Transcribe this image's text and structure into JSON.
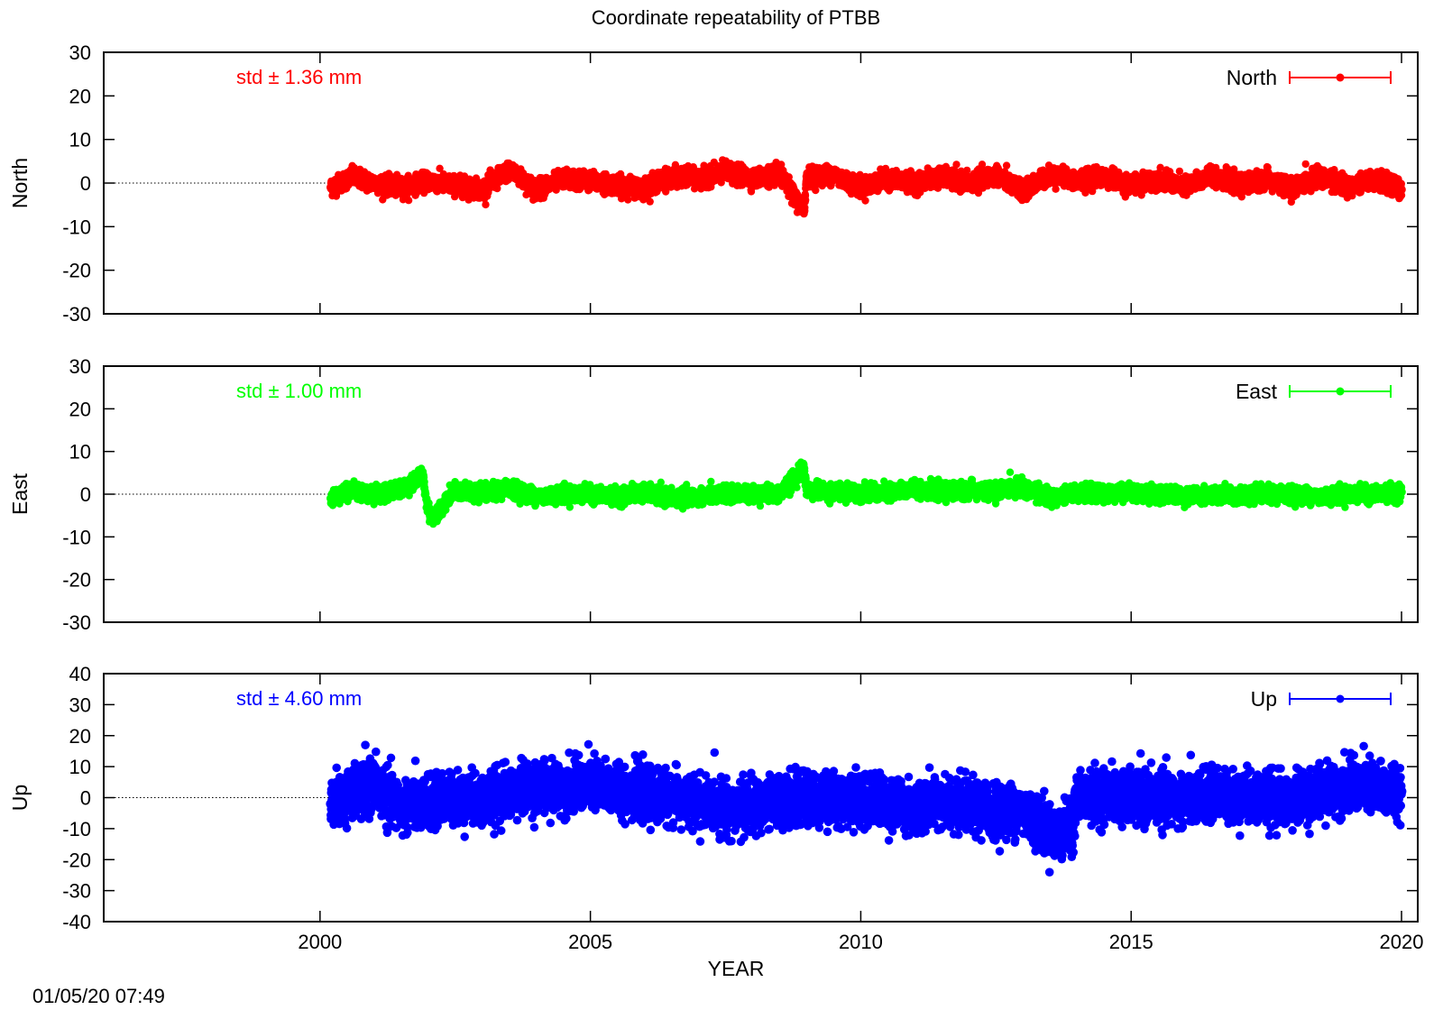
{
  "title": "Coordinate repeatability of PTBB",
  "xlabel": "YEAR",
  "timestamp": "01/05/20 07:49",
  "chart_data": [
    {
      "type": "scatter",
      "ylabel": "North",
      "legend": "North",
      "legend_position": "top-right",
      "std_text": "std ± 1.36 mm",
      "color": "#ff0000",
      "xlim": [
        1996,
        2020.3
      ],
      "ylim": [
        -30,
        30
      ],
      "yticks": [
        "30",
        "20",
        "10",
        "0",
        "-10",
        "-20",
        "-30"
      ],
      "zero_line": true,
      "data_range_x": [
        2000.2,
        2020.0
      ],
      "sampling": "daily",
      "x": [
        2000.2,
        2000.6,
        2001.0,
        2001.5,
        2002.0,
        2002.5,
        2003.0,
        2003.5,
        2004.0,
        2004.5,
        2005.0,
        2005.5,
        2006.0,
        2006.5,
        2007.0,
        2007.5,
        2008.0,
        2008.5,
        2008.95,
        2009.0,
        2009.5,
        2010.0,
        2010.5,
        2011.0,
        2011.5,
        2012.0,
        2012.5,
        2013.0,
        2013.5,
        2014.0,
        2014.5,
        2015.0,
        2015.5,
        2016.0,
        2016.5,
        2017.0,
        2017.5,
        2018.0,
        2018.5,
        2019.0,
        2019.5,
        2020.0
      ],
      "y": [
        -1.0,
        1.5,
        0.0,
        -1.0,
        0.5,
        -0.5,
        -1.5,
        3.0,
        -1.5,
        1.0,
        0.5,
        -0.5,
        -1.0,
        1.5,
        1.0,
        2.5,
        1.0,
        2.0,
        -6.5,
        1.5,
        2.0,
        -1.0,
        1.0,
        0.0,
        1.5,
        0.0,
        2.0,
        -2.0,
        2.0,
        0.5,
        1.5,
        -0.5,
        1.0,
        -1.0,
        2.0,
        -0.5,
        1.0,
        -1.5,
        2.0,
        -1.0,
        1.0,
        -1.5
      ]
    },
    {
      "type": "scatter",
      "ylabel": "East",
      "legend": "East",
      "legend_position": "top-right",
      "std_text": "std ± 1.00 mm",
      "color": "#00ff00",
      "xlim": [
        1996,
        2020.3
      ],
      "ylim": [
        -30,
        30
      ],
      "yticks": [
        "30",
        "20",
        "10",
        "0",
        "-10",
        "-20",
        "-30"
      ],
      "zero_line": true,
      "data_range_x": [
        2000.2,
        2020.0
      ],
      "sampling": "daily",
      "x": [
        2000.2,
        2000.6,
        2001.0,
        2001.5,
        2001.9,
        2002.0,
        2002.1,
        2002.5,
        2003.0,
        2003.5,
        2004.0,
        2004.5,
        2005.0,
        2005.5,
        2006.0,
        2006.5,
        2007.0,
        2007.5,
        2008.0,
        2008.5,
        2008.95,
        2009.0,
        2009.5,
        2010.0,
        2010.5,
        2011.0,
        2011.5,
        2012.0,
        2012.5,
        2013.0,
        2013.5,
        2014.0,
        2014.5,
        2015.0,
        2015.5,
        2016.0,
        2016.5,
        2017.0,
        2017.5,
        2018.0,
        2018.5,
        2019.0,
        2019.5,
        2020.0
      ],
      "y": [
        -1.0,
        1.0,
        0.0,
        1.0,
        4.5,
        -4.0,
        -5.5,
        1.0,
        0.0,
        1.5,
        -0.5,
        0.0,
        0.0,
        -0.5,
        0.5,
        -1.0,
        -0.5,
        0.0,
        0.0,
        0.0,
        6.0,
        1.0,
        0.5,
        0.5,
        0.0,
        1.5,
        0.5,
        1.0,
        0.5,
        2.0,
        -1.0,
        0.5,
        0.0,
        0.5,
        0.0,
        -0.5,
        0.0,
        -0.5,
        0.0,
        0.0,
        -0.5,
        0.0,
        0.0,
        0.5
      ]
    },
    {
      "type": "scatter",
      "ylabel": "Up",
      "legend": "Up",
      "legend_position": "top-right",
      "std_text": "std ± 4.60 mm",
      "color": "#0000ff",
      "xlim": [
        1996,
        2020.3
      ],
      "ylim": [
        -40,
        40
      ],
      "yticks": [
        "40",
        "30",
        "20",
        "10",
        "0",
        "-10",
        "-20",
        "-30",
        "-40"
      ],
      "zero_line": true,
      "data_range_x": [
        2000.2,
        2020.0
      ],
      "sampling": "daily",
      "xticks": [
        "2000",
        "2005",
        "2010",
        "2015",
        "2020"
      ],
      "x": [
        2000.2,
        2000.5,
        2001.0,
        2001.5,
        2002.0,
        2002.5,
        2003.0,
        2003.5,
        2004.0,
        2004.5,
        2005.0,
        2005.5,
        2006.0,
        2006.5,
        2007.0,
        2007.5,
        2008.0,
        2008.5,
        2009.0,
        2009.5,
        2010.0,
        2010.5,
        2011.0,
        2011.5,
        2012.0,
        2012.5,
        2013.0,
        2013.3,
        2013.6,
        2013.9,
        2014.0,
        2014.5,
        2015.0,
        2015.5,
        2016.0,
        2016.5,
        2017.0,
        2017.5,
        2018.0,
        2018.5,
        2019.0,
        2019.5,
        2020.0
      ],
      "y": [
        -2.0,
        0.0,
        4.0,
        -3.0,
        -2.0,
        0.0,
        -1.0,
        2.0,
        3.0,
        3.5,
        4.0,
        3.0,
        1.0,
        0.0,
        -2.0,
        -3.0,
        -3.0,
        -1.0,
        0.0,
        -1.0,
        0.0,
        -2.0,
        -3.0,
        -2.0,
        -3.0,
        -4.0,
        -4.0,
        -8.0,
        -12.0,
        -10.0,
        0.0,
        1.0,
        0.0,
        0.0,
        -1.0,
        1.0,
        0.0,
        0.0,
        -1.0,
        2.0,
        4.0,
        3.0,
        2.0
      ]
    }
  ]
}
